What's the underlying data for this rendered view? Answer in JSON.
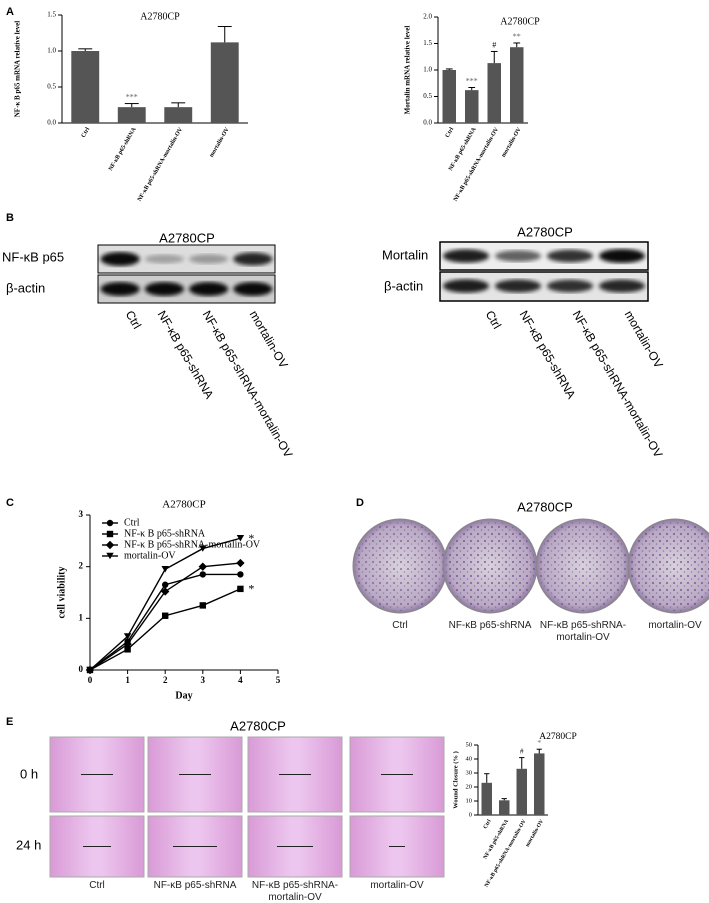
{
  "panels": [
    "A",
    "B",
    "C",
    "D",
    "E"
  ],
  "blots": [
    {
      "title": "A2780CP",
      "rows": [
        "NF-κB p65",
        "β-actin"
      ],
      "lanes": [
        "Ctrl",
        "NF-κB p65-shRNA",
        "NF-κB p65-shRNA-mortalin-OV",
        "mortalin-OV"
      ]
    },
    {
      "title": "A2780CP",
      "rows": [
        "Mortalin",
        "β-actin"
      ],
      "lanes": [
        "Ctrl",
        "NF-κB p65-shRNA",
        "NF-κB p65-shRNA-mortalin-OV",
        "mortalin-OV"
      ]
    }
  ],
  "colony": {
    "title": "A2780CP",
    "labels": [
      "Ctrl",
      "NF-κB p65-shRNA",
      "NF-κB p65-shRNA-mortalin-OV",
      "mortalin-OV"
    ]
  },
  "wound": {
    "title": "A2780CP",
    "rows": [
      "0 h",
      "24 h"
    ],
    "labels": [
      "Ctrl",
      "NF-κB p65-shRNA",
      "NF-κB p65-shRNA-mortalin-OV",
      "mortalin-OV"
    ]
  },
  "chart_data": [
    {
      "type": "bar",
      "title": "A2780CP",
      "y_label": "NF-κ B p65 mRNA relative level",
      "categories": [
        "Ctrl",
        "NF-κB p65-shRNA",
        "NF-κB p65-shRNA-mortalin-OV",
        "mortalin-OV"
      ],
      "values": [
        1.0,
        0.22,
        0.22,
        1.12
      ],
      "errors": [
        0.03,
        0.05,
        0.06,
        0.22
      ],
      "markers": [
        null,
        "***",
        null,
        null
      ],
      "color": "#555555",
      "ylim": [
        0,
        1.5
      ],
      "yticks": [
        {
          "value": 0,
          "label": "0.0"
        },
        {
          "value": 0.5,
          "label": "0.5"
        },
        {
          "value": 1,
          "label": "1.0"
        },
        {
          "value": 1.5,
          "label": "1.5"
        }
      ]
    },
    {
      "type": "bar",
      "title": "A2780CP",
      "y_label": "Mortalin mRNA relative level",
      "categories": [
        "Ctrl",
        "NF-κB p65-shRNA",
        "NF-κB p65-shRNA-mortalin-OV",
        "mortalin-OV"
      ],
      "values": [
        1.0,
        0.62,
        1.13,
        1.43
      ],
      "errors": [
        0.02,
        0.05,
        0.22,
        0.08
      ],
      "markers": [
        null,
        "***",
        "#",
        "**"
      ],
      "color": "#555555",
      "ylim": [
        0,
        2
      ],
      "yticks": [
        {
          "value": 0,
          "label": "0.0"
        },
        {
          "value": 0.5,
          "label": "0.5"
        },
        {
          "value": 1,
          "label": "1.0"
        },
        {
          "value": 1.5,
          "label": "1.5"
        },
        {
          "value": 2,
          "label": "2.0"
        }
      ]
    },
    {
      "type": "line",
      "title": "A2780CP",
      "x_label": "Day",
      "y_label": "cell viability",
      "x": [
        0,
        1,
        2,
        3,
        4
      ],
      "series": [
        {
          "name": "Ctrl",
          "color": "#000000",
          "marker": "circle",
          "values": [
            0,
            0.55,
            1.65,
            1.85,
            1.85
          ]
        },
        {
          "name": "NF-κ B p65-shRNA",
          "color": "#000000",
          "marker": "square",
          "values": [
            0,
            0.4,
            1.05,
            1.25,
            1.57
          ],
          "end_label": "*"
        },
        {
          "name": "NF-κ B p65-shRNA-mortalin-OV",
          "color": "#000000",
          "marker": "diamond",
          "values": [
            0,
            0.5,
            1.52,
            2.0,
            2.07
          ]
        },
        {
          "name": "mortalin-OV",
          "color": "#000000",
          "marker": "triangle-down",
          "values": [
            0,
            0.65,
            1.95,
            2.35,
            2.55
          ],
          "end_label": "*"
        }
      ],
      "xlim": [
        0,
        5
      ],
      "xticks": [
        0,
        1,
        2,
        3,
        4,
        5
      ],
      "ylim": [
        0,
        3
      ],
      "yticks": [
        0,
        1,
        2,
        3
      ],
      "legend": "upper left"
    },
    {
      "type": "bar",
      "title": "A2780CP",
      "y_label": "Wound Closure (% )",
      "categories": [
        "Ctrl",
        "NF-κB p65-shRNA",
        "NF-κB p65-shRNA-mortalin-OV",
        "mortalin-OV"
      ],
      "values": [
        23,
        10.5,
        33,
        44
      ],
      "errors": [
        6.5,
        1.2,
        8,
        3
      ],
      "markers": [
        null,
        null,
        "#",
        "*"
      ],
      "color": "#555555",
      "ylim": [
        0,
        50
      ],
      "yticks": [
        0,
        10,
        20,
        30,
        40,
        50
      ]
    }
  ]
}
